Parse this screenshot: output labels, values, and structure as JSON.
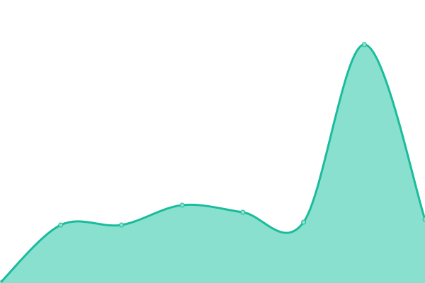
{
  "chart_data": {
    "type": "area",
    "title": "",
    "xlabel": "",
    "ylabel": "",
    "x": [
      0,
      1,
      2,
      3,
      4,
      5,
      6,
      7
    ],
    "values": [
      0,
      82,
      82,
      110,
      100,
      86,
      337,
      90
    ],
    "ylim": [
      0,
      400
    ],
    "grid": false,
    "legend": "none",
    "smooth": true,
    "colors": {
      "line": "#1abc9c",
      "fill": "#8ae0ce",
      "marker": "#8ae0ce"
    }
  }
}
